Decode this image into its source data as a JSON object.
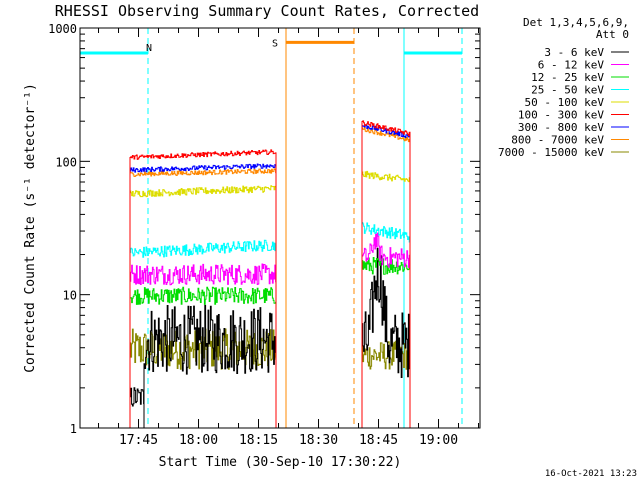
{
  "chart_data": {
    "type": "line",
    "title": "RHESSI Observing Summary Count Rates, Corrected",
    "xlabel": "Start Time (30-Sep-10 17:30:22)",
    "ylabel": "Corrected Count Rate (s⁻¹ detector⁻¹)",
    "yscale": "log",
    "ylim": [
      1,
      1000
    ],
    "xlim_minutes": [
      0,
      100
    ],
    "y_ticks": [
      {
        "value": 1,
        "label": "1"
      },
      {
        "value": 10,
        "label": "10"
      },
      {
        "value": 100,
        "label": "100"
      },
      {
        "value": 1000,
        "label": "1000"
      }
    ],
    "x_ticks": [
      {
        "value": 14.63,
        "label": "17:45"
      },
      {
        "value": 29.63,
        "label": "18:00"
      },
      {
        "value": 44.63,
        "label": "18:15"
      },
      {
        "value": 59.63,
        "label": "18:30"
      },
      {
        "value": 74.63,
        "label": "18:45"
      },
      {
        "value": 89.63,
        "label": "19:00"
      }
    ],
    "legend_header": [
      "Det 1,3,4,5,6,9,",
      "Att 0"
    ],
    "series": [
      {
        "name": "3 - 6 keV",
        "color": "#000000",
        "segments": [
          {
            "start": 12.5,
            "end": 16.0,
            "base": 1.7,
            "jitter": 0.2
          },
          {
            "start": 16.0,
            "end": 49.0,
            "base": 4.6,
            "jitter": 0.6
          },
          {
            "start": 70.5,
            "end": 82.5,
            "base": 4.2,
            "jitter": 0.6,
            "peak_at": 74.5,
            "peak": 15,
            "peak_width": 1.4
          }
        ]
      },
      {
        "name": "6 - 12 keV",
        "color": "#ff00ff",
        "segments": [
          {
            "start": 12.5,
            "end": 49.0,
            "base": 14.2,
            "jitter": 0.18
          },
          {
            "start": 70.5,
            "end": 82.5,
            "base": 19.0,
            "jitter": 0.18,
            "peak_at": 73.8,
            "peak": 26,
            "peak_width": 1.0
          }
        ]
      },
      {
        "name": "12 - 25 keV",
        "color": "#00dd00",
        "segments": [
          {
            "start": 12.5,
            "end": 49.0,
            "base": 9.8,
            "jitter": 0.15
          },
          {
            "start": 70.5,
            "end": 82.5,
            "base": 16.5,
            "jitter": 0.15
          }
        ]
      },
      {
        "name": "25 - 50 keV",
        "color": "#00ffff",
        "segments": [
          {
            "start": 12.5,
            "end": 49.0,
            "base": 20.5,
            "jitter": 0.1,
            "rise": 1.15
          },
          {
            "start": 70.5,
            "end": 82.5,
            "base": 32.0,
            "jitter": 0.1,
            "decay": 0.85
          }
        ]
      },
      {
        "name": "50 - 100 keV",
        "color": "#dddd00",
        "segments": [
          {
            "start": 12.5,
            "end": 49.0,
            "base": 57,
            "jitter": 0.06,
            "rise": 1.1
          },
          {
            "start": 70.5,
            "end": 82.5,
            "base": 80,
            "jitter": 0.06,
            "decay": 0.9
          }
        ]
      },
      {
        "name": "100 - 300 keV",
        "color": "#ff0000",
        "segments": [
          {
            "start": 12.5,
            "end": 49.0,
            "base": 107,
            "jitter": 0.04,
            "rise": 1.1
          },
          {
            "start": 70.5,
            "end": 82.5,
            "base": 195,
            "jitter": 0.04,
            "decay": 0.82
          }
        ]
      },
      {
        "name": "300 - 800 keV",
        "color": "#0000ff",
        "segments": [
          {
            "start": 12.5,
            "end": 49.0,
            "base": 86,
            "jitter": 0.04,
            "rise": 1.08
          },
          {
            "start": 70.5,
            "end": 82.5,
            "base": 185,
            "jitter": 0.04,
            "decay": 0.83
          }
        ]
      },
      {
        "name": "800 - 7000 keV",
        "color": "#ff8800",
        "segments": [
          {
            "start": 12.5,
            "end": 49.0,
            "base": 80,
            "jitter": 0.04,
            "rise": 1.06
          },
          {
            "start": 70.5,
            "end": 82.5,
            "base": 175,
            "jitter": 0.04,
            "decay": 0.82
          }
        ]
      },
      {
        "name": "7000 - 15000 keV",
        "color": "#888800",
        "segments": [
          {
            "start": 12.5,
            "end": 49.0,
            "base": 3.9,
            "jitter": 0.35
          },
          {
            "start": 70.5,
            "end": 82.5,
            "base": 3.5,
            "jitter": 0.25
          }
        ]
      }
    ],
    "annotations": [
      {
        "label": "N",
        "color": "#00ffff",
        "minute": 15.5,
        "kind": "night"
      },
      {
        "label": "S",
        "color": "#ff8800",
        "minute": 49.5,
        "kind": "saa"
      }
    ]
  },
  "timestamp": "16-Oct-2021 13:23"
}
